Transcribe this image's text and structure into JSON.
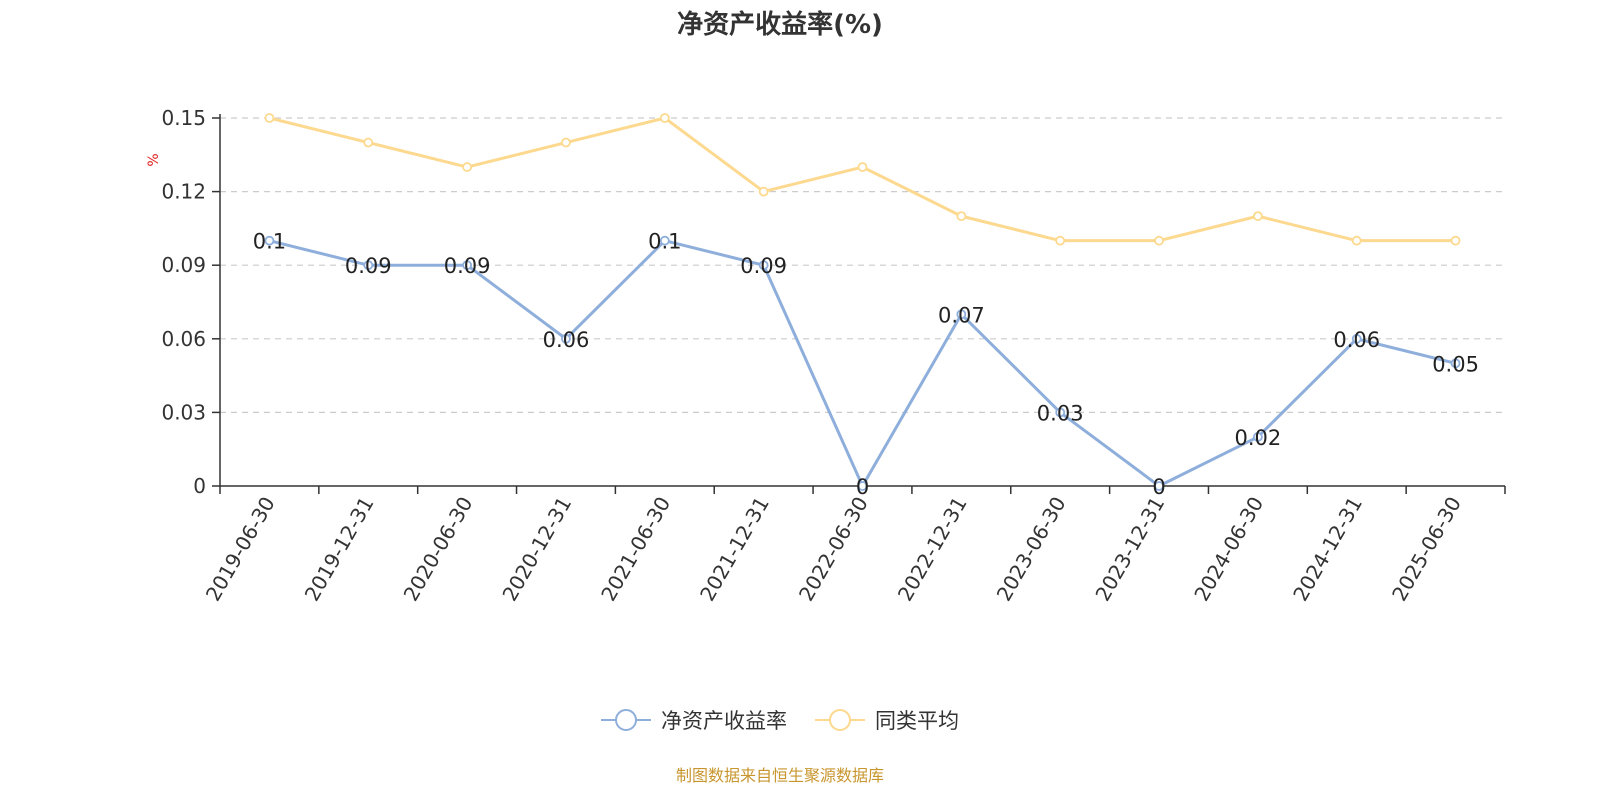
{
  "chart_data": {
    "type": "line",
    "title": "净资产收益率(%)",
    "ylabel": "%",
    "xlabel": "",
    "categories": [
      "2019-06-30",
      "2019-12-31",
      "2020-06-30",
      "2020-12-31",
      "2021-06-30",
      "2021-12-31",
      "2022-06-30",
      "2022-12-31",
      "2023-06-30",
      "2023-12-31",
      "2024-06-30",
      "2024-12-31",
      "2025-06-30"
    ],
    "ylim": [
      0,
      0.15
    ],
    "yticks": [
      "0",
      "0.03",
      "0.06",
      "0.09",
      "0.12",
      "0.15"
    ],
    "grid": true,
    "legend_position": "bottom",
    "series": [
      {
        "name": "净资产收益率",
        "color": "#8eaedb",
        "values": [
          0.1,
          0.09,
          0.09,
          0.06,
          0.1,
          0.09,
          0,
          0.07,
          0.03,
          0,
          0.02,
          0.06,
          0.05
        ],
        "labels": [
          "0.1",
          "0.09",
          "0.09",
          "0.06",
          "0.1",
          "0.09",
          "0",
          "0.07",
          "0.03",
          "0",
          "0.02",
          "0.06",
          "0.05"
        ]
      },
      {
        "name": "同类平均",
        "color": "#fcd98e",
        "values": [
          0.15,
          0.14,
          0.13,
          0.14,
          0.15,
          0.12,
          0.13,
          0.11,
          0.1,
          0.1,
          0.11,
          0.1,
          0.1
        ]
      }
    ]
  },
  "source_note": "制图数据来自恒生聚源数据库"
}
